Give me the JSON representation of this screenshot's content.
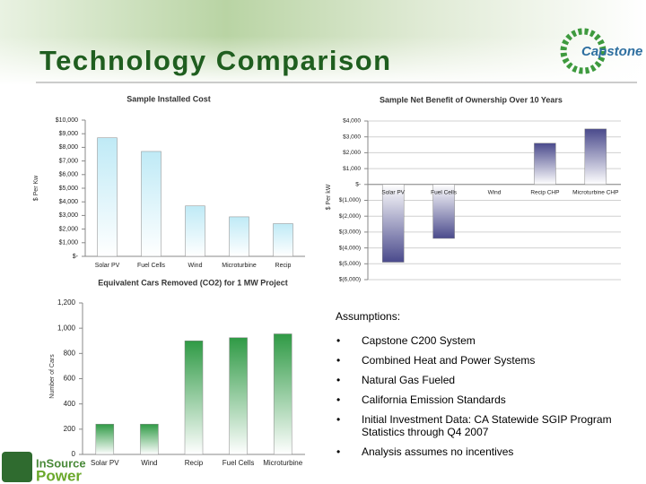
{
  "title": "Technology Comparison",
  "logo": "Capstone",
  "footer_logo": [
    "InSource",
    "Power"
  ],
  "assumptions": {
    "heading": "Assumptions:",
    "items": [
      "Capstone C200 System",
      "Combined Heat and Power Systems",
      "Natural Gas Fueled",
      "California Emission Standards",
      "Initial Investment Data: CA Statewide SGIP Program Statistics through Q4 2007",
      "Analysis assumes no incentives"
    ]
  },
  "chart_data": [
    {
      "type": "bar",
      "title": "Sample Installed Cost",
      "y_label": "$ Per Kw",
      "categories": [
        "Solar PV",
        "Fuel Cells",
        "Wind",
        "Microturbine",
        "Recip"
      ],
      "values": [
        8700,
        7700,
        3700,
        2900,
        2400
      ],
      "color": "#bfeaf6",
      "ylim": [
        0,
        10000
      ],
      "yticks": [
        {
          "value": 0,
          "label": "$-"
        },
        {
          "value": 1000,
          "label": "$1,000"
        },
        {
          "value": 2000,
          "label": "$2,000"
        },
        {
          "value": 3000,
          "label": "$3,000"
        },
        {
          "value": 4000,
          "label": "$4,000"
        },
        {
          "value": 5000,
          "label": "$5,000"
        },
        {
          "value": 6000,
          "label": "$6,000"
        },
        {
          "value": 7000,
          "label": "$7,000"
        },
        {
          "value": 8000,
          "label": "$8,000"
        },
        {
          "value": 9000,
          "label": "$9,000"
        },
        {
          "value": 10000,
          "label": "$10,000"
        }
      ],
      "grid": false
    },
    {
      "type": "bar",
      "title": "Sample Net Benefit of Ownership Over 10 Years",
      "y_label": "$ Per kW",
      "categories": [
        "Solar PV",
        "Fuel Cells",
        "Wind",
        "Recip CHP",
        "Microturbine CHP"
      ],
      "values": [
        -4900,
        -3400,
        0,
        2600,
        3500
      ],
      "color": "#4a4a8c",
      "ylim": [
        -6000,
        4000
      ],
      "yticks": [
        {
          "value": -6000,
          "label": "$(6,000)"
        },
        {
          "value": -5000,
          "label": "$(5,000)"
        },
        {
          "value": -4000,
          "label": "$(4,000)"
        },
        {
          "value": -3000,
          "label": "$(3,000)"
        },
        {
          "value": -2000,
          "label": "$(2,000)"
        },
        {
          "value": -1000,
          "label": "$(1,000)"
        },
        {
          "value": 0,
          "label": "$-"
        },
        {
          "value": 1000,
          "label": "$1,000"
        },
        {
          "value": 2000,
          "label": "$2,000"
        },
        {
          "value": 3000,
          "label": "$3,000"
        },
        {
          "value": 4000,
          "label": "$4,000"
        }
      ],
      "grid": true
    },
    {
      "type": "bar",
      "title": "Equivalent Cars Removed (CO2) for 1 MW Project",
      "y_label": "Number of Cars",
      "categories": [
        "Solar PV",
        "Wind",
        "Recip",
        "Fuel Cells",
        "Microturbine"
      ],
      "values": [
        240,
        240,
        900,
        925,
        955
      ],
      "color": "#2f9a45",
      "ylim": [
        0,
        1200
      ],
      "yticks": [
        0,
        200,
        400,
        600,
        800,
        {
          "value": 1000,
          "label": "1,000"
        },
        {
          "value": 1200,
          "label": "1,200"
        }
      ],
      "grid": false
    }
  ]
}
